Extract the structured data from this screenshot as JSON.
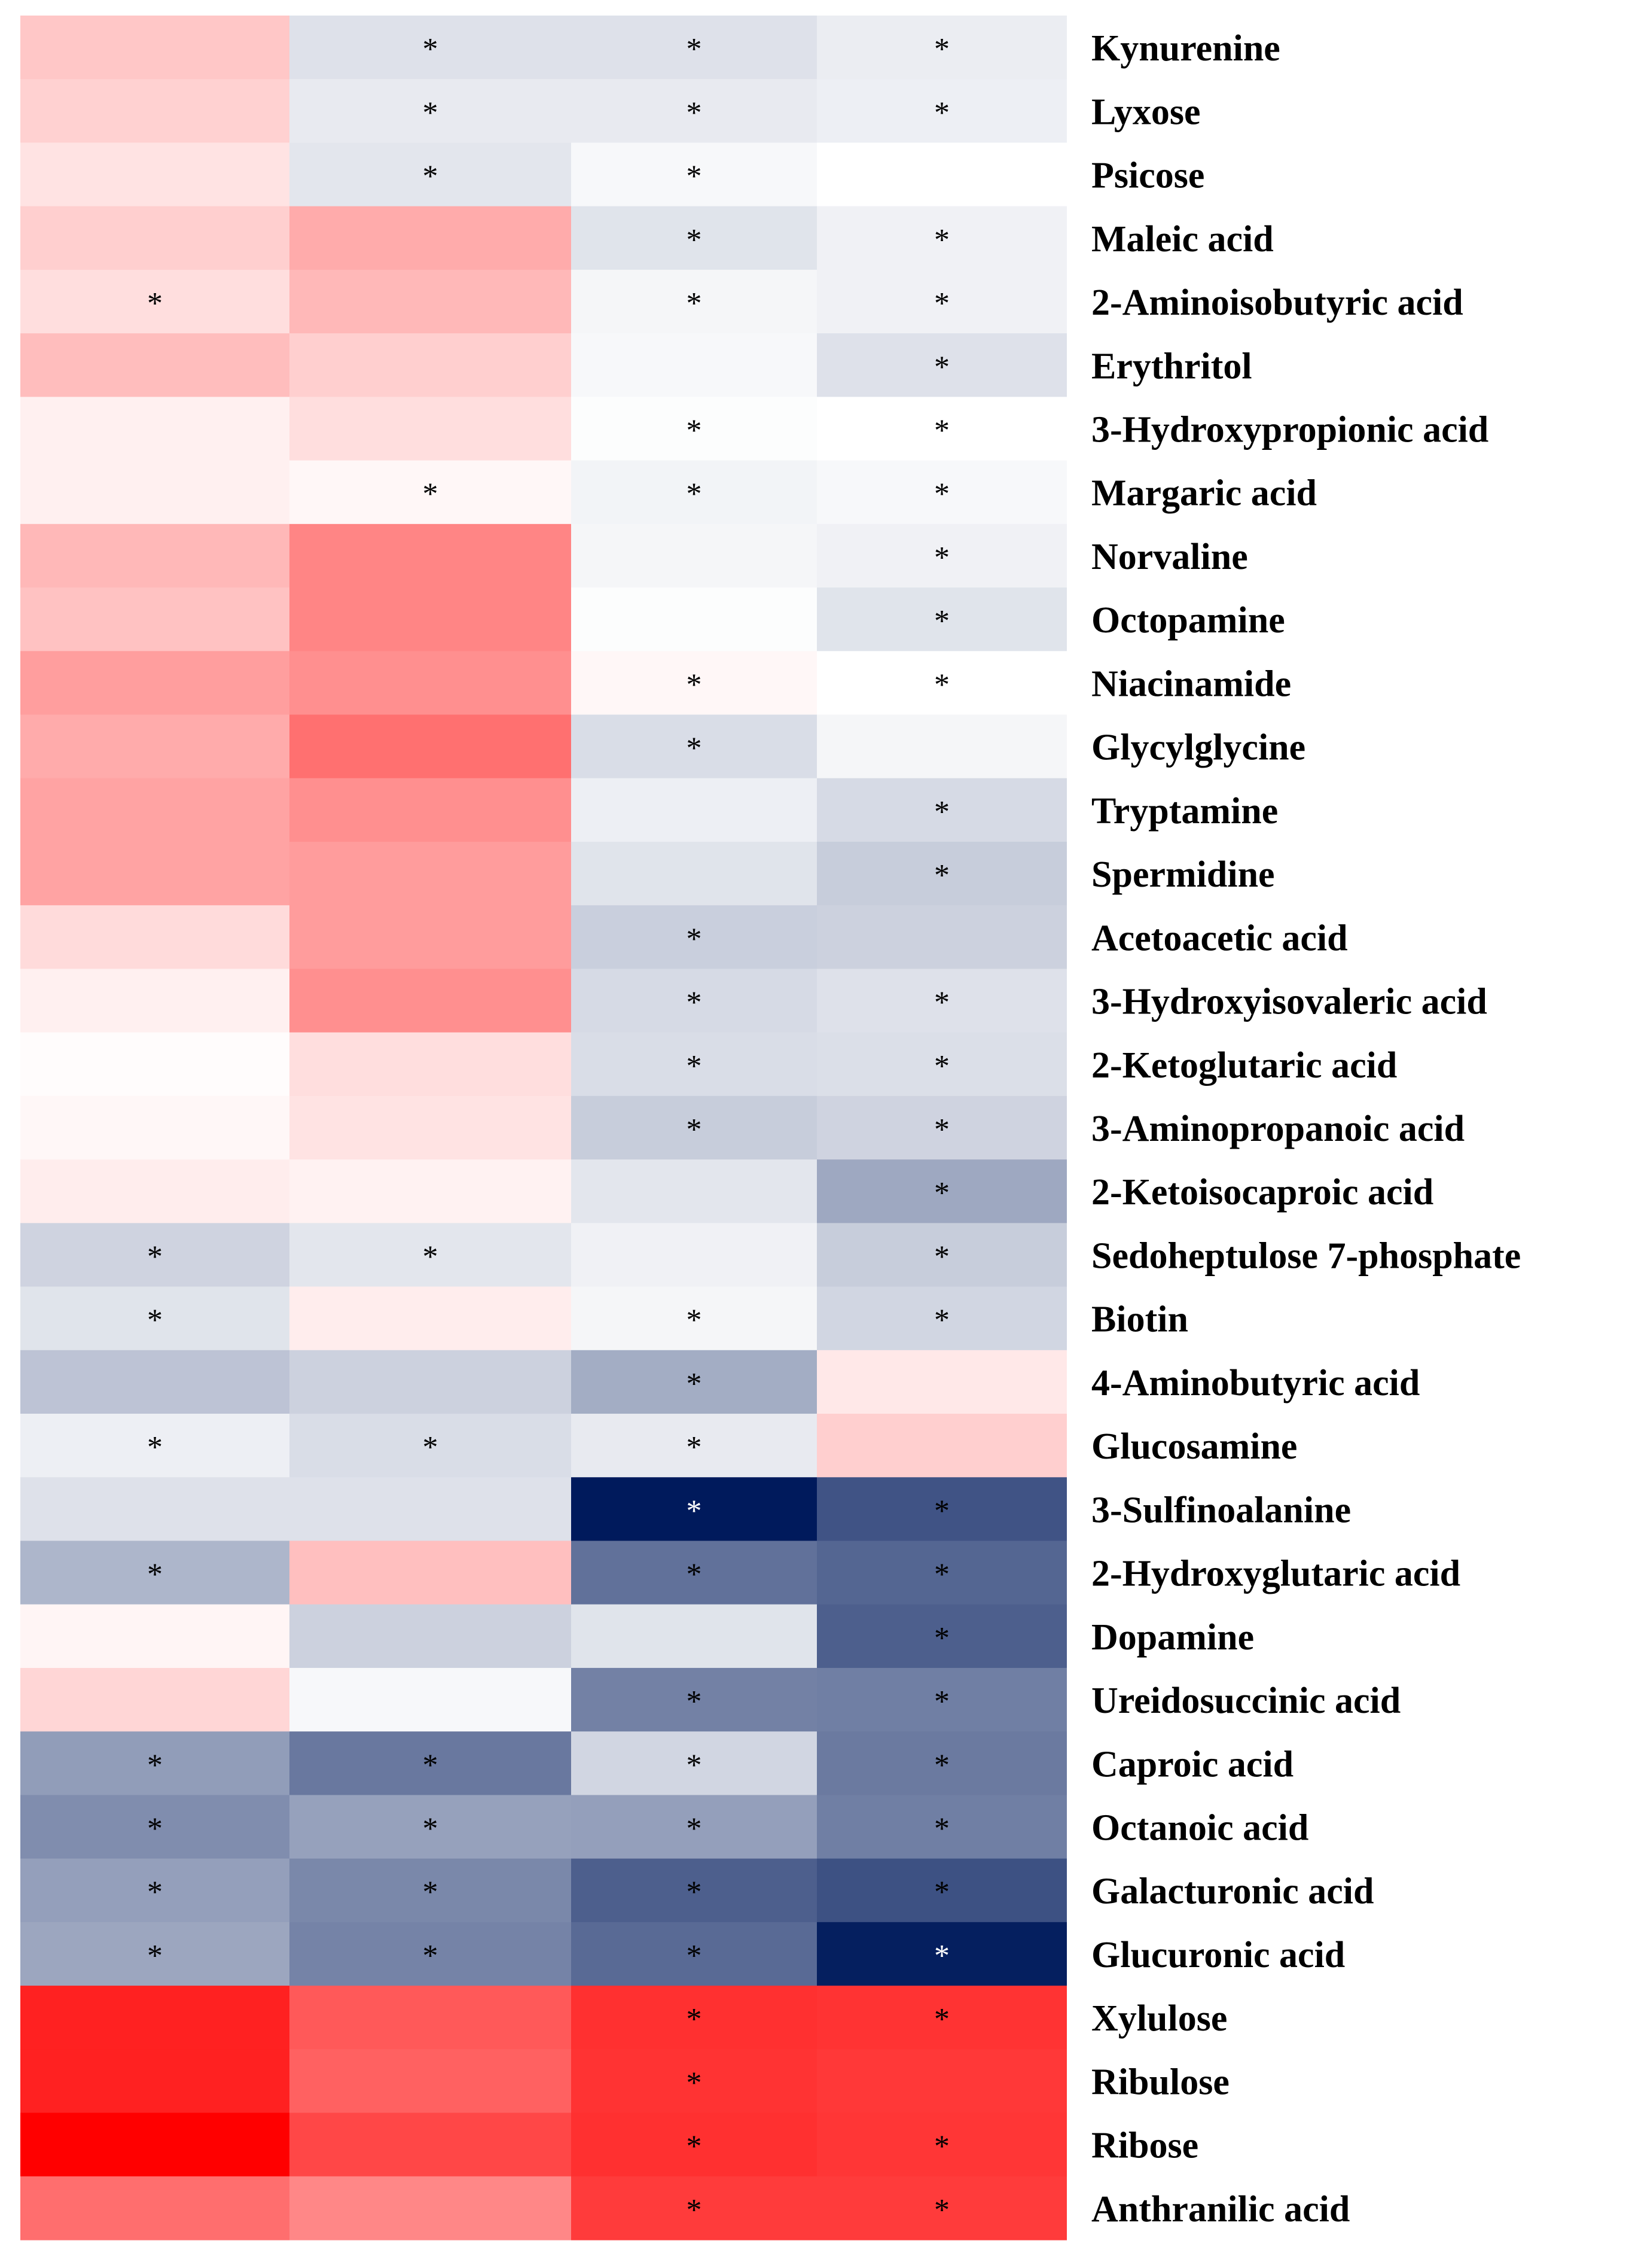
{
  "chart_data": {
    "type": "heatmap",
    "title": "",
    "xlabel": "",
    "ylabel": "",
    "columns": 4,
    "column_labels": [],
    "significance_marker": "*",
    "value_range": [
      -1,
      1
    ],
    "colors": {
      "negative": "#001a5c",
      "neutral": "#ffffff",
      "positive": "#ff0000",
      "marker_on_light": "#000000",
      "marker_on_dark": "#ffffff"
    },
    "rows": [
      {
        "label": "Kynurenine",
        "values": [
          0.22,
          -0.13,
          -0.13,
          -0.08
        ],
        "sig": [
          "",
          "*",
          "*",
          "*"
        ]
      },
      {
        "label": "Lyxose",
        "values": [
          0.18,
          -0.09,
          -0.09,
          -0.07
        ],
        "sig": [
          "",
          "*",
          "*",
          "*"
        ]
      },
      {
        "label": "Psicose",
        "values": [
          0.11,
          -0.11,
          -0.03,
          0
        ],
        "sig": [
          "",
          "*",
          "*",
          ""
        ]
      },
      {
        "label": "Maleic acid",
        "values": [
          0.19,
          0.33,
          -0.12,
          -0.06
        ],
        "sig": [
          "",
          "",
          "*",
          "*"
        ]
      },
      {
        "label": "2-Aminoisobutyric acid",
        "values": [
          0.13,
          0.28,
          -0.04,
          -0.06
        ],
        "sig": [
          "*",
          "",
          "*",
          "*"
        ]
      },
      {
        "label": "Erythritol",
        "values": [
          0.26,
          0.19,
          -0.03,
          -0.13
        ],
        "sig": [
          "",
          "",
          "",
          "*"
        ]
      },
      {
        "label": "3-Hydroxypropionic acid",
        "values": [
          0.06,
          0.13,
          -0.01,
          0
        ],
        "sig": [
          "",
          "",
          "*",
          "*"
        ]
      },
      {
        "label": "Margaric acid",
        "values": [
          0.06,
          0.03,
          -0.05,
          -0.03
        ],
        "sig": [
          "",
          "*",
          "*",
          "*"
        ]
      },
      {
        "label": "Norvaline",
        "values": [
          0.28,
          0.48,
          -0.04,
          -0.06
        ],
        "sig": [
          "",
          "",
          "",
          "*"
        ]
      },
      {
        "label": "Octopamine",
        "values": [
          0.24,
          0.48,
          -0.01,
          -0.12
        ],
        "sig": [
          "",
          "",
          "",
          "*"
        ]
      },
      {
        "label": "Niacinamide",
        "values": [
          0.38,
          0.44,
          0.03,
          0
        ],
        "sig": [
          "",
          "",
          "*",
          "*"
        ]
      },
      {
        "label": "Glycylglycine",
        "values": [
          0.33,
          0.56,
          -0.15,
          -0.04
        ],
        "sig": [
          "",
          "",
          "*",
          ""
        ]
      },
      {
        "label": "Tryptamine",
        "values": [
          0.36,
          0.44,
          -0.07,
          -0.16
        ],
        "sig": [
          "",
          "",
          "",
          "*"
        ]
      },
      {
        "label": "Spermidine",
        "values": [
          0.36,
          0.39,
          -0.12,
          -0.22
        ],
        "sig": [
          "",
          "",
          "",
          "*"
        ]
      },
      {
        "label": "Acetoacetic acid",
        "values": [
          0.14,
          0.39,
          -0.21,
          -0.2
        ],
        "sig": [
          "",
          "",
          "*",
          ""
        ]
      },
      {
        "label": "3-Hydroxyisovaleric acid",
        "values": [
          0.06,
          0.44,
          -0.16,
          -0.13
        ],
        "sig": [
          "",
          "",
          "*",
          "*"
        ]
      },
      {
        "label": "2-Ketoglutaric acid",
        "values": [
          0.01,
          0.13,
          -0.15,
          -0.14
        ],
        "sig": [
          "",
          "",
          "*",
          "*"
        ]
      },
      {
        "label": "3-Aminopropanoic acid",
        "values": [
          0.03,
          0.11,
          -0.22,
          -0.19
        ],
        "sig": [
          "",
          "",
          "*",
          "*"
        ]
      },
      {
        "label": "2-Ketoisocaproic acid",
        "values": [
          0.07,
          0.05,
          -0.11,
          -0.38
        ],
        "sig": [
          "",
          "",
          "",
          "*"
        ]
      },
      {
        "label": "Sedoheptulose 7-phosphate",
        "values": [
          -0.19,
          -0.11,
          -0.06,
          -0.22
        ],
        "sig": [
          "*",
          "*",
          "",
          "*"
        ]
      },
      {
        "label": "Biotin",
        "values": [
          -0.12,
          0.07,
          -0.04,
          -0.18
        ],
        "sig": [
          "*",
          "",
          "*",
          "*"
        ]
      },
      {
        "label": "4-Aminobutyric acid",
        "values": [
          -0.26,
          -0.2,
          -0.36,
          0.09
        ],
        "sig": [
          "",
          "",
          "*",
          ""
        ]
      },
      {
        "label": "Glucosamine",
        "values": [
          -0.07,
          -0.15,
          -0.09,
          0.19
        ],
        "sig": [
          "*",
          "*",
          "*",
          ""
        ]
      },
      {
        "label": "3-Sulfinoalanine",
        "values": [
          -0.13,
          -0.13,
          -1.0,
          -0.75
        ],
        "sig": [
          "",
          "",
          "*",
          "*"
        ]
      },
      {
        "label": "2-Hydroxyglutaric acid",
        "values": [
          -0.32,
          0.25,
          -0.62,
          -0.67
        ],
        "sig": [
          "*",
          "",
          "*",
          "*"
        ]
      },
      {
        "label": "Dopamine",
        "values": [
          0.04,
          -0.2,
          -0.12,
          -0.7
        ],
        "sig": [
          "",
          "",
          "",
          "*"
        ]
      },
      {
        "label": "Ureidosuccinic acid",
        "values": [
          0.16,
          -0.03,
          -0.55,
          -0.56
        ],
        "sig": [
          "",
          "",
          "*",
          "*"
        ]
      },
      {
        "label": "Caproic acid",
        "values": [
          -0.43,
          -0.59,
          -0.18,
          -0.58
        ],
        "sig": [
          "*",
          "*",
          "*",
          "*"
        ]
      },
      {
        "label": "Octanoic acid",
        "values": [
          -0.5,
          -0.41,
          -0.42,
          -0.56
        ],
        "sig": [
          "*",
          "*",
          "*",
          "*"
        ]
      },
      {
        "label": "Galacturonic acid",
        "values": [
          -0.42,
          -0.52,
          -0.7,
          -0.76
        ],
        "sig": [
          "*",
          "*",
          "*",
          "*"
        ]
      },
      {
        "label": "Glucuronic acid",
        "values": [
          -0.39,
          -0.54,
          -0.65,
          -0.98
        ],
        "sig": [
          "*",
          "*",
          "*",
          "*"
        ]
      },
      {
        "label": "Xylulose",
        "values": [
          0.87,
          0.65,
          0.81,
          0.8
        ],
        "sig": [
          "",
          "",
          "*",
          "*"
        ]
      },
      {
        "label": "Ribulose",
        "values": [
          0.87,
          0.62,
          0.8,
          0.78
        ],
        "sig": [
          "",
          "",
          "*",
          ""
        ]
      },
      {
        "label": "Ribose",
        "values": [
          1.0,
          0.72,
          0.81,
          0.79
        ],
        "sig": [
          "",
          "",
          "*",
          "*"
        ]
      },
      {
        "label": "Anthranilic acid",
        "values": [
          0.57,
          0.47,
          0.77,
          0.77
        ],
        "sig": [
          "",
          "",
          "*",
          "*"
        ]
      }
    ]
  }
}
